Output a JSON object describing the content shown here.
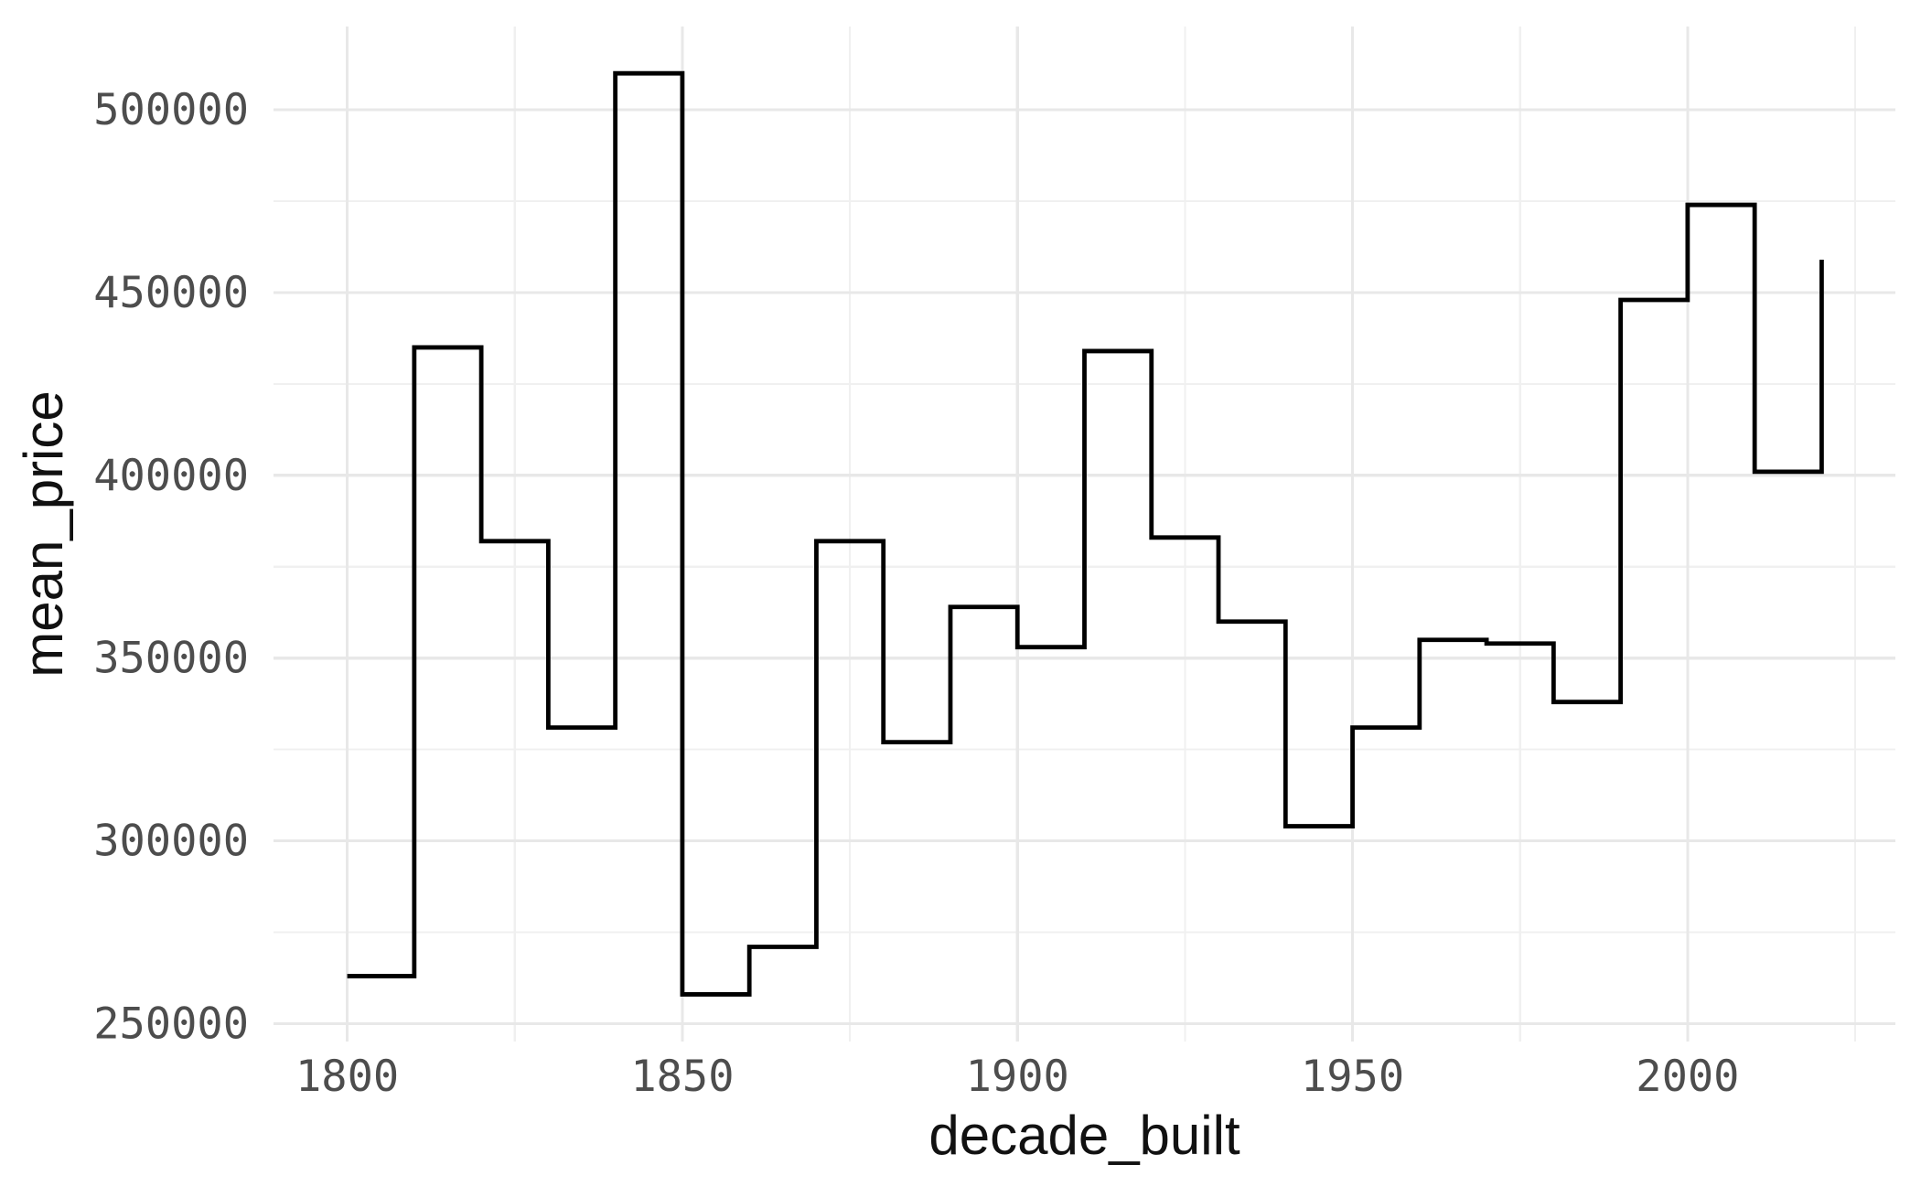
{
  "chart_data": {
    "type": "line",
    "subtype": "step",
    "title": "",
    "xlabel": "decade_built",
    "ylabel": "mean_price",
    "x": [
      1800,
      1810,
      1820,
      1830,
      1840,
      1850,
      1860,
      1870,
      1880,
      1890,
      1900,
      1910,
      1920,
      1930,
      1940,
      1950,
      1960,
      1970,
      1980,
      1990,
      2000,
      2010,
      2020
    ],
    "y": [
      263000,
      435000,
      382000,
      331000,
      510000,
      258000,
      271000,
      382000,
      327000,
      364000,
      353000,
      434000,
      383000,
      360000,
      304000,
      331000,
      355000,
      354000,
      338000,
      448000,
      474000,
      401000,
      459000
    ],
    "step_direction": "hv",
    "xlim": [
      1789,
      2031
    ],
    "ylim": [
      245100,
      522800
    ],
    "x_ticks": [
      {
        "v": 1800,
        "label": "1800"
      },
      {
        "v": 1850,
        "label": "1850"
      },
      {
        "v": 1900,
        "label": "1900"
      },
      {
        "v": 1950,
        "label": "1950"
      },
      {
        "v": 2000,
        "label": "2000"
      }
    ],
    "x_minor_ticks": [
      1825,
      1875,
      1925,
      1975,
      2025
    ],
    "y_ticks": [
      {
        "v": 250000,
        "label": "250000"
      },
      {
        "v": 300000,
        "label": "300000"
      },
      {
        "v": 350000,
        "label": "350000"
      },
      {
        "v": 400000,
        "label": "400000"
      },
      {
        "v": 450000,
        "label": "450000"
      },
      {
        "v": 500000,
        "label": "500000"
      }
    ],
    "y_minor_ticks": [
      275000,
      325000,
      375000,
      425000,
      475000
    ],
    "grid": true,
    "legend": false,
    "colors": {
      "line": "#000000",
      "grid_major": "#e8e8e8",
      "grid_minor": "#f0f0f0",
      "tick_text": "#4d4d4d",
      "title_text": "#111111",
      "background": "#ffffff"
    }
  }
}
